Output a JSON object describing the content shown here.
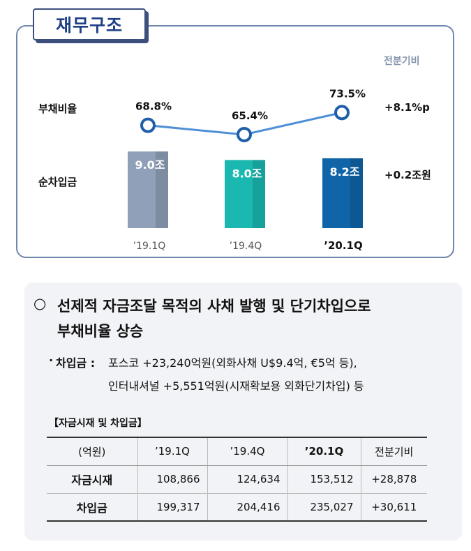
{
  "title": "재무구조",
  "chart_data": {
    "type": "bar+line",
    "unit_note": "전분기비",
    "categories": [
      "’19.1Q",
      "’19.4Q",
      "’20.1Q"
    ],
    "series": [
      {
        "name": "부채비율",
        "type": "line",
        "values": [
          68.8,
          65.4,
          73.5
        ],
        "labels": [
          "68.8%",
          "65.4%",
          "73.5%"
        ],
        "change": "+8.1%p",
        "color": "#4f8fd6"
      },
      {
        "name": "순차입금",
        "type": "bar",
        "values": [
          9.0,
          8.0,
          8.2
        ],
        "labels": [
          "9.0조",
          "8.0조",
          "8.2조"
        ],
        "change": "+0.2조원",
        "colors": [
          "#8fa0b8",
          "#1ab8b0",
          "#0f65a8"
        ]
      }
    ]
  },
  "note": {
    "bullet_symbol": "○",
    "headline_line1": "선제적 자금조달 목적의 사채 발행 및 단기차입으로",
    "headline_line2": "부채비율 상승",
    "sub_bullet": "·",
    "sub_label": "차입금 :",
    "sub_line1": "포스코 +23,240억원(외화사채 U$9.4억, €5억 등),",
    "sub_line2": "인터내셔널 +5,551억원(시재확보용 외화단기차입) 등"
  },
  "table": {
    "title": "【자금시재 및 차입금】",
    "headers": [
      "(억원)",
      "’19.1Q",
      "’19.4Q",
      "’20.1Q",
      "전분기비"
    ],
    "rows": [
      {
        "label": "자금시재",
        "values": [
          "108,866",
          "124,634",
          "153,512",
          "+28,878"
        ]
      },
      {
        "label": "차입금",
        "values": [
          "199,317",
          "204,416",
          "235,027",
          "+30,611"
        ]
      }
    ]
  }
}
